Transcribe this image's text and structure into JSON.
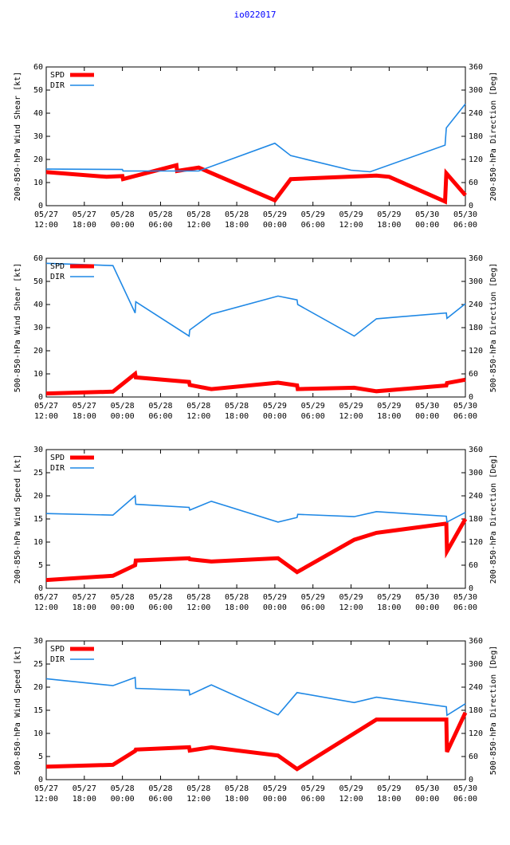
{
  "page": {
    "title": "io022017"
  },
  "colors": {
    "spd": "#ff0000",
    "dir": "#1f88e5",
    "axis": "#000000"
  },
  "x_ticks": [
    [
      "05/27",
      "12:00"
    ],
    [
      "05/27",
      "18:00"
    ],
    [
      "05/28",
      "00:00"
    ],
    [
      "05/28",
      "06:00"
    ],
    [
      "05/28",
      "12:00"
    ],
    [
      "05/28",
      "18:00"
    ],
    [
      "05/29",
      "00:00"
    ],
    [
      "05/29",
      "06:00"
    ],
    [
      "05/29",
      "12:00"
    ],
    [
      "05/29",
      "18:00"
    ],
    [
      "05/30",
      "00:00"
    ],
    [
      "05/30",
      "06:00"
    ]
  ],
  "chart_data": [
    {
      "type": "line",
      "ylabel": "200-850-hPa Wind Shear [kt]",
      "y2label": "200-850-hPa Direction [Deg]",
      "xlim": [
        0,
        66
      ],
      "ylim": [
        0,
        60
      ],
      "y2lim": [
        0,
        360
      ],
      "yticks": [
        0,
        10,
        20,
        30,
        40,
        50,
        60
      ],
      "y2ticks": [
        0,
        60,
        120,
        180,
        240,
        300,
        360
      ],
      "legend": [
        "SPD",
        "DIR"
      ],
      "series": [
        {
          "name": "SPD",
          "axis": "left",
          "x": [
            0,
            9.5,
            12,
            12.1,
            20.5,
            20.6,
            24,
            36,
            38.5,
            52,
            54,
            62.8,
            63,
            66
          ],
          "y": [
            14.5,
            12.5,
            12.8,
            11.5,
            17.5,
            15,
            16.5,
            2.3,
            11.5,
            13,
            12.5,
            1.8,
            14,
            4.5
          ]
        },
        {
          "name": "DIR",
          "axis": "right",
          "x": [
            0,
            12,
            12.1,
            24,
            36,
            38.5,
            48,
            51,
            62.8,
            63,
            66
          ],
          "y": [
            95,
            94,
            90,
            90,
            162,
            130,
            92,
            88,
            157,
            202,
            264
          ]
        }
      ]
    },
    {
      "type": "line",
      "ylabel": "500-850-hPa Wind Shear [kt]",
      "y2label": "500-850-hPa Direction [Deg]",
      "xlim": [
        0,
        66
      ],
      "ylim": [
        0,
        60
      ],
      "y2lim": [
        0,
        360
      ],
      "yticks": [
        0,
        10,
        20,
        30,
        40,
        50,
        60
      ],
      "y2ticks": [
        0,
        60,
        120,
        180,
        240,
        300,
        360
      ],
      "legend": [
        "SPD",
        "DIR"
      ],
      "series": [
        {
          "name": "SPD",
          "axis": "left",
          "x": [
            0,
            10.5,
            14,
            14.1,
            22.5,
            22.6,
            26,
            36.5,
            39.5,
            39.6,
            48.5,
            52,
            63,
            63.1,
            66
          ],
          "y": [
            1.5,
            2.3,
            10,
            8.5,
            6.5,
            5.2,
            3.4,
            6.2,
            5,
            3.4,
            4,
            2.5,
            5,
            6,
            7.5
          ]
        },
        {
          "name": "DIR",
          "axis": "right",
          "x": [
            0,
            10.5,
            14,
            14.1,
            22.5,
            22.6,
            26,
            36.5,
            39.5,
            39.6,
            48.5,
            52,
            63,
            63.1,
            66
          ],
          "y": [
            347,
            341,
            218,
            247,
            158,
            174,
            215,
            262,
            252,
            240,
            158,
            203,
            218,
            204,
            242
          ]
        }
      ]
    },
    {
      "type": "line",
      "ylabel": "200-850-hPa Wind Speed [kt]",
      "y2label": "200-850-hPa Direction [Deg]",
      "xlim": [
        0,
        66
      ],
      "ylim": [
        0,
        30
      ],
      "y2lim": [
        0,
        360
      ],
      "yticks": [
        0,
        5,
        10,
        15,
        20,
        25,
        30
      ],
      "y2ticks": [
        0,
        60,
        120,
        180,
        240,
        300,
        360
      ],
      "legend": [
        "SPD",
        "DIR"
      ],
      "series": [
        {
          "name": "SPD",
          "axis": "left",
          "x": [
            0,
            10.5,
            14,
            14.1,
            22.5,
            22.6,
            26,
            36.5,
            39.5,
            48.5,
            52,
            63,
            63.1,
            66
          ],
          "y": [
            1.8,
            2.7,
            5,
            6,
            6.5,
            6.3,
            5.8,
            6.5,
            3.5,
            10.5,
            12,
            14,
            8,
            15
          ]
        },
        {
          "name": "DIR",
          "axis": "right",
          "x": [
            0,
            10.5,
            14,
            14.1,
            22.5,
            22.6,
            26,
            36.5,
            39.5,
            39.6,
            48.5,
            52,
            63,
            63.1,
            66
          ],
          "y": [
            194,
            190,
            240,
            218,
            210,
            203,
            226,
            172,
            184,
            192,
            186,
            199,
            187,
            172,
            197
          ]
        }
      ]
    },
    {
      "type": "line",
      "ylabel": "500-850-hPa Wind Speed [kt]",
      "y2label": "500-850-hPa Direction [Deg]",
      "xlim": [
        0,
        66
      ],
      "ylim": [
        0,
        30
      ],
      "y2lim": [
        0,
        360
      ],
      "yticks": [
        0,
        5,
        10,
        15,
        20,
        25,
        30
      ],
      "y2ticks": [
        0,
        60,
        120,
        180,
        240,
        300,
        360
      ],
      "legend": [
        "SPD",
        "DIR"
      ],
      "series": [
        {
          "name": "SPD",
          "axis": "left",
          "x": [
            0,
            10.5,
            14,
            14.1,
            22.5,
            22.6,
            26,
            36.5,
            39.5,
            48.5,
            52,
            63,
            63.1,
            66
          ],
          "y": [
            2.8,
            3.2,
            6.2,
            6.5,
            7,
            6.3,
            7,
            5.2,
            2.3,
            10,
            13,
            13,
            6,
            14.5
          ]
        },
        {
          "name": "DIR",
          "axis": "right",
          "x": [
            0,
            10.5,
            14,
            14.1,
            22.5,
            22.6,
            26,
            36.5,
            39.5,
            48.5,
            52,
            63,
            63.1,
            66
          ],
          "y": [
            262,
            244,
            265,
            237,
            232,
            220,
            246,
            168,
            226,
            200,
            214,
            189,
            167,
            197
          ]
        }
      ]
    }
  ]
}
